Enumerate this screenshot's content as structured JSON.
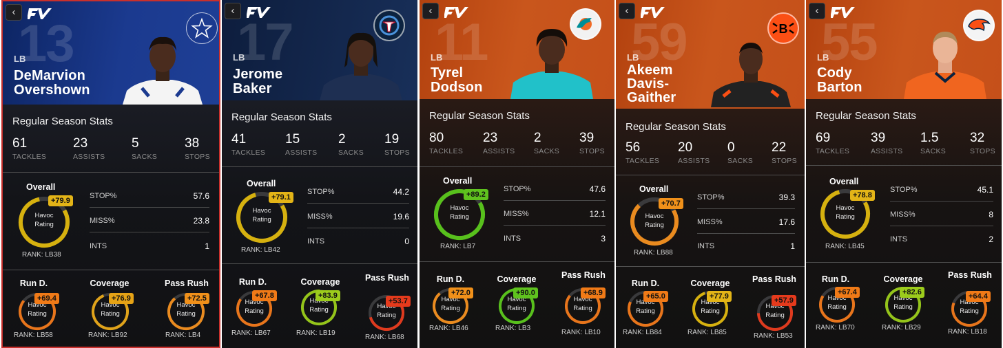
{
  "app": {
    "back_glyph": "‹",
    "logo_icon": "fv-logo-icon"
  },
  "cards": [
    {
      "jersey": "13",
      "position": "LB",
      "name_line1": "DeMarvion",
      "name_line2": "Overshown",
      "name_line3": "",
      "team_logo": "star-icon",
      "section_title": "Regular Season Stats",
      "stats": [
        {
          "value": "61",
          "label": "TACKLES"
        },
        {
          "value": "23",
          "label": "ASSISTS"
        },
        {
          "value": "5",
          "label": "SACKS"
        },
        {
          "value": "38",
          "label": "STOPS"
        }
      ],
      "overall": {
        "label": "Overall",
        "grade": "+79.9",
        "grade_color": "#e3b417",
        "ring_color": "#d6b10f",
        "fill": 0.8,
        "gauge_text_1": "Havoc",
        "gauge_text_2": "Rating",
        "rank": "RANK: LB38"
      },
      "metrics": [
        {
          "label": "STOP%",
          "value": "57.6"
        },
        {
          "label": "MISS%",
          "value": "23.8"
        },
        {
          "label": "INTS",
          "value": "1"
        }
      ],
      "subs": [
        {
          "label": "Run D.",
          "grade": "+69.4",
          "grade_color": "#f07a17",
          "ring_color": "#e8751b",
          "fill": 0.69,
          "rank": "RANK: LB58"
        },
        {
          "label": "Coverage",
          "grade": "+76.9",
          "grade_color": "#e6a316",
          "ring_color": "#e0a31a",
          "fill": 0.77,
          "rank": "RANK: LB92"
        },
        {
          "label": "Pass Rush",
          "grade": "+72.5",
          "grade_color": "#f0901a",
          "ring_color": "#ea8b1f",
          "fill": 0.72,
          "rank": "RANK: LB4"
        }
      ]
    },
    {
      "jersey": "17",
      "position": "LB",
      "name_line1": "Jerome",
      "name_line2": "Baker",
      "name_line3": "",
      "team_logo": "titans-icon",
      "section_title": "Regular Season Stats",
      "stats": [
        {
          "value": "41",
          "label": "TACKLES"
        },
        {
          "value": "15",
          "label": "ASSISTS"
        },
        {
          "value": "2",
          "label": "SACKS"
        },
        {
          "value": "19",
          "label": "STOPS"
        }
      ],
      "overall": {
        "label": "Overall",
        "grade": "+79.1",
        "grade_color": "#e3b417",
        "ring_color": "#d6b10f",
        "fill": 0.79,
        "gauge_text_1": "Havoc",
        "gauge_text_2": "Rating",
        "rank": "RANK: LB42"
      },
      "metrics": [
        {
          "label": "STOP%",
          "value": "44.2"
        },
        {
          "label": "MISS%",
          "value": "19.6"
        },
        {
          "label": "INTS",
          "value": "0"
        }
      ],
      "subs": [
        {
          "label": "Run D.",
          "grade": "+67.8",
          "grade_color": "#f07a17",
          "ring_color": "#e8751b",
          "fill": 0.68,
          "rank": "RANK: LB67"
        },
        {
          "label": "Coverage",
          "grade": "+83.9",
          "grade_color": "#9ccc1c",
          "ring_color": "#94c41a",
          "fill": 0.84,
          "rank": "RANK: LB19"
        },
        {
          "label": "Pass Rush",
          "grade": "+53.7",
          "grade_color": "#e53a1c",
          "ring_color": "#df3a1e",
          "fill": 0.54,
          "rank": "RANK: LB68"
        }
      ]
    },
    {
      "jersey": "11",
      "position": "LB",
      "name_line1": "Tyrel",
      "name_line2": "Dodson",
      "name_line3": "",
      "team_logo": "dolphins-icon",
      "section_title": "Regular Season Stats",
      "stats": [
        {
          "value": "80",
          "label": "TACKLES"
        },
        {
          "value": "23",
          "label": "ASSISTS"
        },
        {
          "value": "2",
          "label": "SACKS"
        },
        {
          "value": "39",
          "label": "STOPS"
        }
      ],
      "overall": {
        "label": "Overall",
        "grade": "+89.2",
        "grade_color": "#5fc21e",
        "ring_color": "#58c01c",
        "fill": 0.89,
        "gauge_text_1": "Havoc",
        "gauge_text_2": "Rating",
        "rank": "RANK: LB7"
      },
      "metrics": [
        {
          "label": "STOP%",
          "value": "47.6"
        },
        {
          "label": "MISS%",
          "value": "12.1"
        },
        {
          "label": "INTS",
          "value": "3"
        }
      ],
      "subs": [
        {
          "label": "Run D.",
          "grade": "+72.0",
          "grade_color": "#f0901a",
          "ring_color": "#ea8b1f",
          "fill": 0.72,
          "rank": "RANK: LB46"
        },
        {
          "label": "Coverage",
          "grade": "+90.0",
          "grade_color": "#5fc21e",
          "ring_color": "#58c01c",
          "fill": 0.9,
          "rank": "RANK: LB3"
        },
        {
          "label": "Pass Rush",
          "grade": "+68.9",
          "grade_color": "#f07a17",
          "ring_color": "#e8751b",
          "fill": 0.69,
          "rank": "RANK: LB10"
        }
      ]
    },
    {
      "jersey": "59",
      "position": "LB",
      "name_line1": "Akeem",
      "name_line2": "Davis-",
      "name_line3": "Gaither",
      "team_logo": "bengals-icon",
      "section_title": "Regular Season Stats",
      "stats": [
        {
          "value": "56",
          "label": "TACKLES"
        },
        {
          "value": "20",
          "label": "ASSISTS"
        },
        {
          "value": "0",
          "label": "SACKS"
        },
        {
          "value": "22",
          "label": "STOPS"
        }
      ],
      "overall": {
        "label": "Overall",
        "grade": "+70.7",
        "grade_color": "#f0901a",
        "ring_color": "#ea8b1f",
        "fill": 0.71,
        "gauge_text_1": "Havoc",
        "gauge_text_2": "Rating",
        "rank": "RANK: LB88"
      },
      "metrics": [
        {
          "label": "STOP%",
          "value": "39.3"
        },
        {
          "label": "MISS%",
          "value": "17.6"
        },
        {
          "label": "INTS",
          "value": "1"
        }
      ],
      "subs": [
        {
          "label": "Run D.",
          "grade": "+65.0",
          "grade_color": "#f07a17",
          "ring_color": "#e8751b",
          "fill": 0.65,
          "rank": "RANK: LB84"
        },
        {
          "label": "Coverage",
          "grade": "+77.9",
          "grade_color": "#e3b417",
          "ring_color": "#d6b10f",
          "fill": 0.78,
          "rank": "RANK: LB85"
        },
        {
          "label": "Pass Rush",
          "grade": "+57.9",
          "grade_color": "#e53a1c",
          "ring_color": "#df3a1e",
          "fill": 0.58,
          "rank": "RANK: LB53"
        }
      ]
    },
    {
      "jersey": "55",
      "position": "LB",
      "name_line1": "Cody",
      "name_line2": "Barton",
      "name_line3": "",
      "team_logo": "broncos-icon",
      "section_title": "Regular Season Stats",
      "stats": [
        {
          "value": "69",
          "label": "TACKLES"
        },
        {
          "value": "39",
          "label": "ASSISTS"
        },
        {
          "value": "1.5",
          "label": "SACKS"
        },
        {
          "value": "32",
          "label": "STOPS"
        }
      ],
      "overall": {
        "label": "Overall",
        "grade": "+78.8",
        "grade_color": "#e3b417",
        "ring_color": "#d6b10f",
        "fill": 0.79,
        "gauge_text_1": "Havoc",
        "gauge_text_2": "Rating",
        "rank": "RANK: LB45"
      },
      "metrics": [
        {
          "label": "STOP%",
          "value": "45.1"
        },
        {
          "label": "MISS%",
          "value": "8"
        },
        {
          "label": "INTS",
          "value": "2"
        }
      ],
      "subs": [
        {
          "label": "Run D.",
          "grade": "+67.4",
          "grade_color": "#f07a17",
          "ring_color": "#e8751b",
          "fill": 0.67,
          "rank": "RANK: LB70"
        },
        {
          "label": "Coverage",
          "grade": "+82.6",
          "grade_color": "#9ccc1c",
          "ring_color": "#94c41a",
          "fill": 0.83,
          "rank": "RANK: LB29"
        },
        {
          "label": "Pass Rush",
          "grade": "+64.4",
          "grade_color": "#f07a17",
          "ring_color": "#e8751b",
          "fill": 0.64,
          "rank": "RANK: LB18"
        }
      ]
    }
  ]
}
